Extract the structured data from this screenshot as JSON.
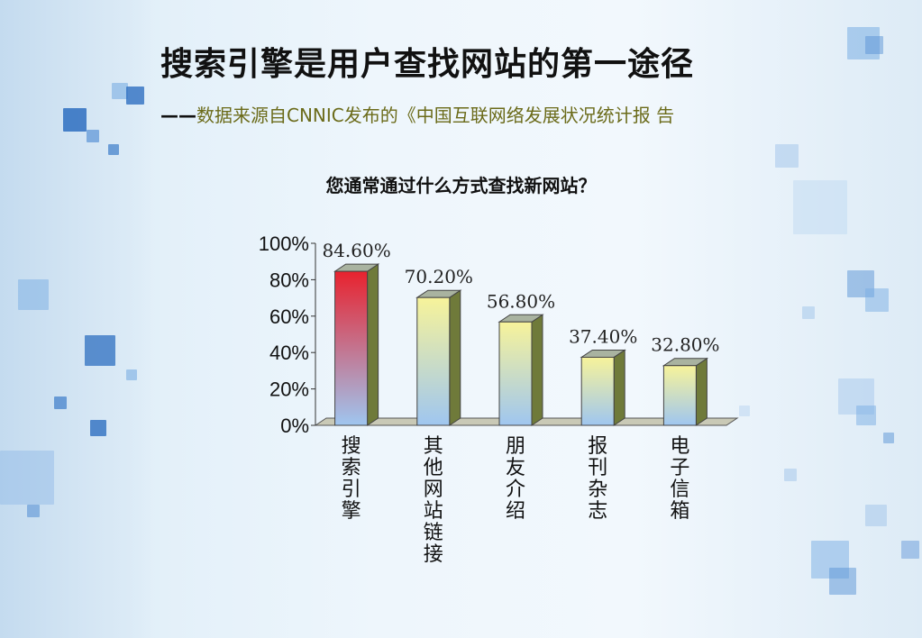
{
  "slide": {
    "title": "搜索引擎是用户查找网站的第一途径",
    "subtitle_dash": "——",
    "subtitle_text": "数据来源自CNNIC发布的《中国互联网络发展状况统计报 告"
  },
  "chart_data": {
    "type": "bar",
    "title": "您通常通过什么方式查找新网站？",
    "categories": [
      "搜索引擎",
      "其他网站链接",
      "朋友介绍",
      "报刊杂志",
      "电子信箱"
    ],
    "values": [
      84.6,
      70.2,
      56.8,
      37.4,
      32.8
    ],
    "data_labels": [
      "84.60%",
      "70.20%",
      "56.80%",
      "37.40%",
      "32.80%"
    ],
    "yticks": [
      "0%",
      "20%",
      "40%",
      "60%",
      "80%",
      "100%"
    ],
    "ylim": [
      0,
      100
    ],
    "grid": false,
    "legend": "none",
    "colors": {
      "highlight_top": "#e8222e",
      "highlight_bottom": "#9fc6f0",
      "bar_top": "#f7f39a",
      "bar_bottom": "#9fc6f0",
      "side": "#6f7a3a"
    }
  }
}
